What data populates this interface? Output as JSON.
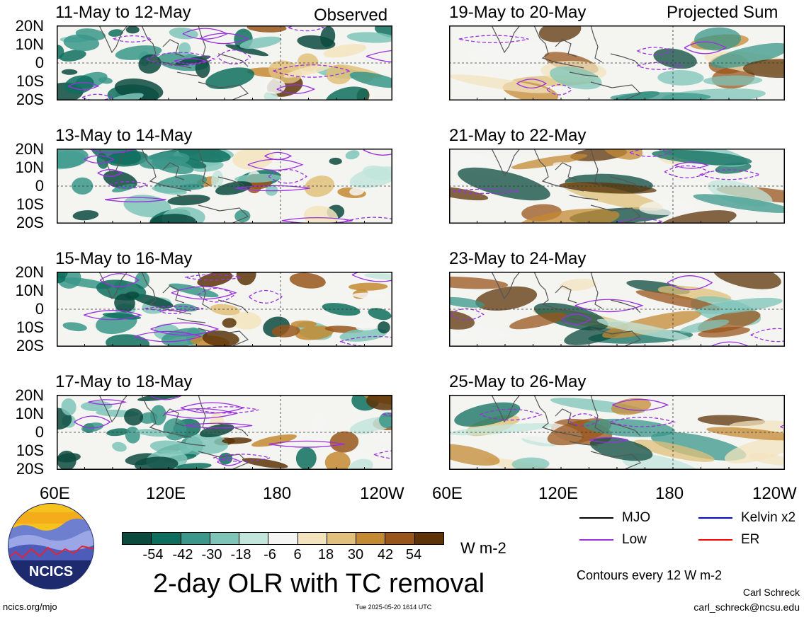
{
  "observed_label": "Observed",
  "projected_label": "Projected Sum",
  "panels_left": [
    {
      "title": "11-May to 12-May"
    },
    {
      "title": "13-May to 14-May"
    },
    {
      "title": "15-May to 16-May"
    },
    {
      "title": "17-May to 18-May"
    }
  ],
  "panels_right": [
    {
      "title": "19-May to 20-May"
    },
    {
      "title": "21-May to 22-May"
    },
    {
      "title": "23-May to 24-May"
    },
    {
      "title": "25-May to 26-May"
    }
  ],
  "lat_ticks": [
    "20N",
    "10N",
    "0",
    "10S",
    "20S"
  ],
  "lon_ticks_left": [
    "60E",
    "120E",
    "180",
    "120W"
  ],
  "lon_ticks_right": [
    "60E",
    "120E",
    "180",
    "120W"
  ],
  "colorbar": {
    "labels": [
      "-54",
      "-42",
      "-30",
      "-18",
      "-6",
      "6",
      "18",
      "30",
      "42",
      "54"
    ],
    "colors": [
      "#0b4a3e",
      "#0e6e5e",
      "#3a978a",
      "#7ec4b8",
      "#c2e5dc",
      "#f5f5f3",
      "#f3e4bd",
      "#e0c07a",
      "#c48a33",
      "#98561b",
      "#5c3408"
    ],
    "units": "W m-2"
  },
  "main_title": "2-day OLR with TC removal",
  "legend": [
    {
      "label": "MJO",
      "color": "#000000"
    },
    {
      "label": "Kelvin x2",
      "color": "#0000ff"
    },
    {
      "label": "Low",
      "color": "#9b30e0"
    },
    {
      "label": "ER",
      "color": "#ff0000"
    }
  ],
  "contours_note": "Contours every 12 W m-2",
  "author_name": "Carl Schreck",
  "author_email": "carl_schreck@ncsu.edu",
  "site": "ncics.org/mjo",
  "timestamp": "Tue 2025-05-20 1614 UTC",
  "logo_text": "NCICS"
}
